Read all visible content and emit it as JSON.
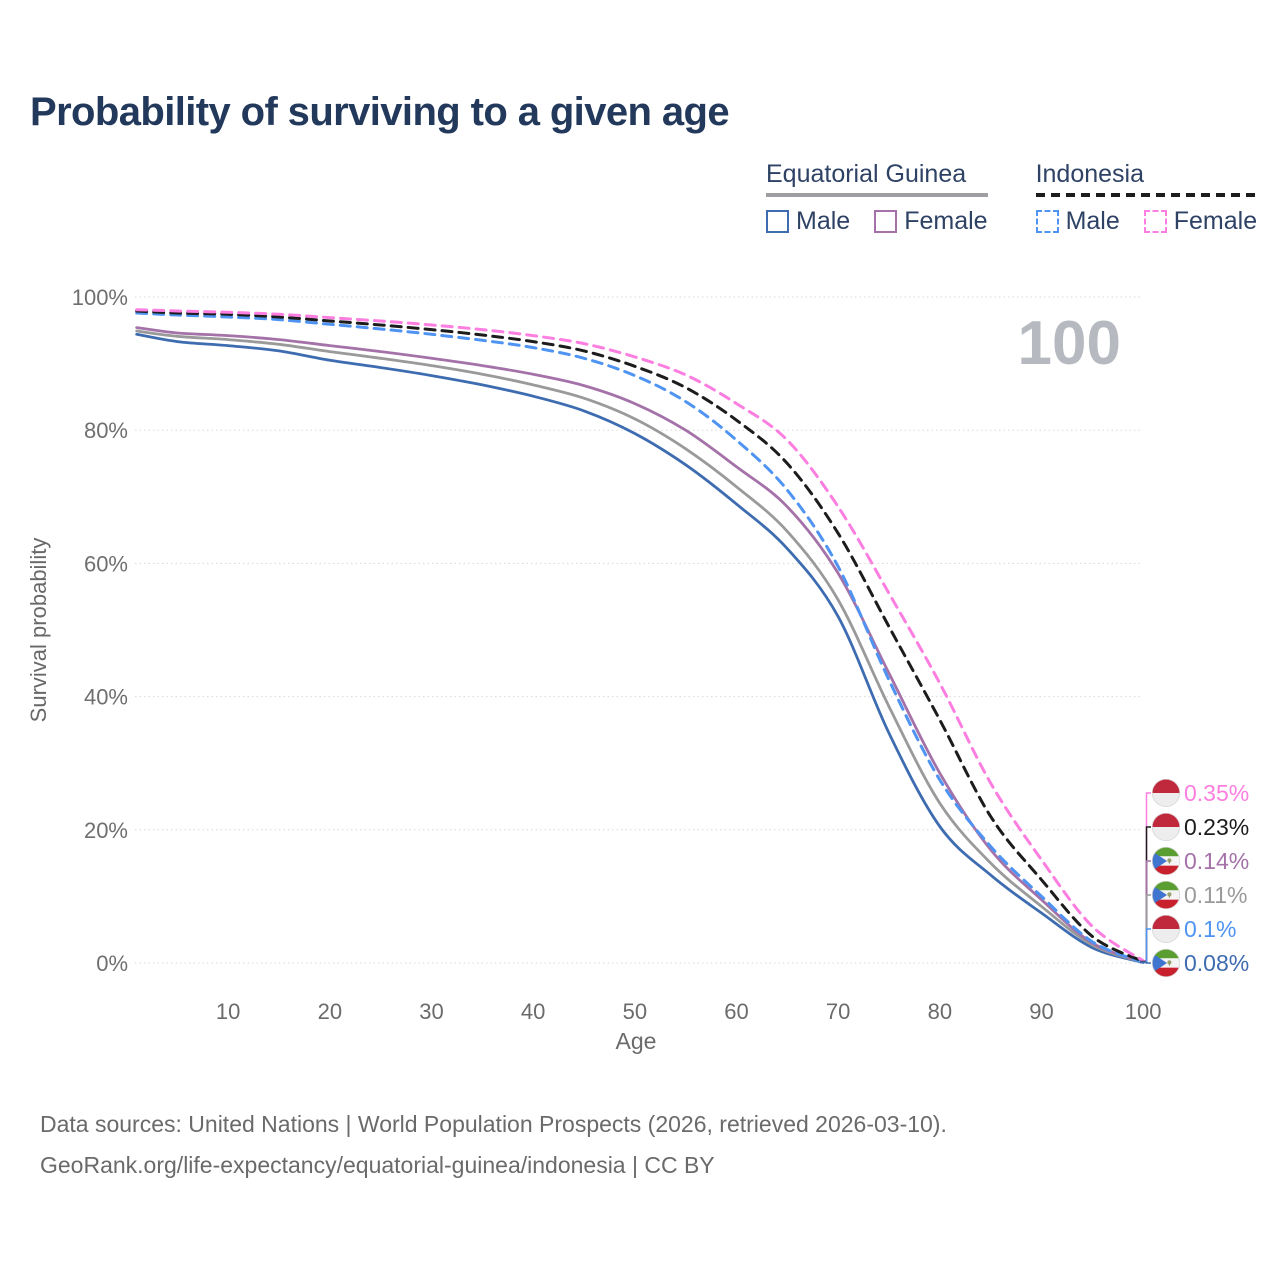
{
  "title": "Probability of surviving to a given age",
  "watermark_age": "100",
  "legend": {
    "groups": [
      {
        "label": "Equatorial Guinea",
        "line_style": "solid",
        "line_color": "#9e9ea3",
        "items": [
          {
            "label": "Male",
            "color": "#3e6cb0",
            "dashed": false
          },
          {
            "label": "Female",
            "color": "#a472a8",
            "dashed": false
          }
        ]
      },
      {
        "label": "Indonesia",
        "line_style": "dashed",
        "line_color": "#1c1c1c",
        "items": [
          {
            "label": "Male",
            "color": "#4f94f2",
            "dashed": true
          },
          {
            "label": "Female",
            "color": "#fb7ee0",
            "dashed": true
          }
        ]
      }
    ]
  },
  "chart_data": {
    "type": "line",
    "title": "Probability of surviving to a given age",
    "xlabel": "Age",
    "ylabel": "Survival probability",
    "x_ticks": [
      10,
      20,
      30,
      40,
      50,
      60,
      70,
      80,
      90,
      100
    ],
    "y_ticks": [
      {
        "value": 0,
        "label": "0%"
      },
      {
        "value": 20,
        "label": "20%"
      },
      {
        "value": 40,
        "label": "40%"
      },
      {
        "value": 60,
        "label": "60%"
      },
      {
        "value": 80,
        "label": "80%"
      },
      {
        "value": 100,
        "label": "100%"
      }
    ],
    "xlim": [
      1,
      100
    ],
    "ylim": [
      0,
      100
    ],
    "grid": "horizontal-dotted",
    "legend_position": "top-right",
    "ages": [
      1,
      5,
      10,
      15,
      20,
      25,
      30,
      35,
      40,
      45,
      50,
      55,
      60,
      65,
      70,
      75,
      80,
      85,
      90,
      95,
      100
    ],
    "series": [
      {
        "id": "eq-male",
        "label": "Equatorial Guinea Male",
        "country": "Equatorial Guinea",
        "flag": "equatorial-guinea",
        "style": "solid",
        "color": "#3e6cb0",
        "end_label": "0.08%",
        "values": [
          94.4,
          93.3,
          92.7,
          91.9,
          90.5,
          89.4,
          88.2,
          86.8,
          85.1,
          82.9,
          79.5,
          74.8,
          68.9,
          62.2,
          52.0,
          34.5,
          20.5,
          13.2,
          7.5,
          2.3,
          0.08
        ]
      },
      {
        "id": "eq-all",
        "label": "Equatorial Guinea",
        "country": "Equatorial Guinea",
        "flag": "equatorial-guinea",
        "style": "solid",
        "color": "#9a9a9a",
        "end_label": "0.11%",
        "values": [
          94.9,
          94.1,
          93.6,
          92.9,
          91.8,
          90.8,
          89.7,
          88.4,
          86.8,
          84.8,
          81.7,
          77.2,
          71.5,
          64.8,
          54.5,
          38.5,
          24.0,
          15.0,
          8.5,
          2.7,
          0.11
        ]
      },
      {
        "id": "eq-female",
        "label": "Equatorial Guinea Female",
        "country": "Equatorial Guinea",
        "flag": "equatorial-guinea",
        "style": "solid",
        "color": "#a472a8",
        "end_label": "0.14%",
        "values": [
          95.4,
          94.6,
          94.2,
          93.6,
          92.7,
          91.8,
          90.8,
          89.7,
          88.4,
          86.7,
          84.0,
          80.0,
          74.5,
          68.5,
          58.5,
          43.5,
          28.5,
          17.0,
          9.5,
          3.0,
          0.14
        ]
      },
      {
        "id": "idn-male",
        "label": "Indonesia Male",
        "country": "Indonesia",
        "flag": "indonesia",
        "style": "dashed",
        "color": "#4f94f2",
        "end_label": "0.1%",
        "values": [
          97.6,
          97.3,
          97.0,
          96.6,
          95.9,
          95.2,
          94.4,
          93.5,
          92.4,
          90.8,
          88.2,
          84.3,
          78.5,
          71.0,
          59.5,
          42.5,
          27.5,
          17.5,
          10.0,
          3.2,
          0.1
        ]
      },
      {
        "id": "idn-all",
        "label": "Indonesia",
        "country": "Indonesia",
        "flag": "indonesia",
        "style": "dashed",
        "color": "#1c1c1c",
        "end_label": "0.23%",
        "values": [
          97.9,
          97.6,
          97.4,
          97.0,
          96.4,
          95.8,
          95.1,
          94.3,
          93.3,
          91.9,
          89.6,
          86.4,
          81.5,
          75.0,
          64.5,
          50.5,
          36.5,
          22.0,
          12.5,
          4.0,
          0.23
        ]
      },
      {
        "id": "idn-female",
        "label": "Indonesia Female",
        "country": "Indonesia",
        "flag": "indonesia",
        "style": "dashed",
        "color": "#fb7ee0",
        "end_label": "0.35%",
        "values": [
          98.1,
          97.9,
          97.7,
          97.4,
          96.9,
          96.4,
          95.8,
          95.1,
          94.2,
          93.0,
          91.0,
          88.3,
          84.0,
          78.5,
          68.5,
          55.5,
          42.0,
          27.0,
          15.5,
          5.5,
          0.35
        ]
      }
    ]
  },
  "footer": {
    "line1": "Data sources: United Nations | World Population Prospects (2026, retrieved 2026-03-10).",
    "line2": "GeoRank.org/life-expectancy/equatorial-guinea/indonesia | CC BY"
  }
}
